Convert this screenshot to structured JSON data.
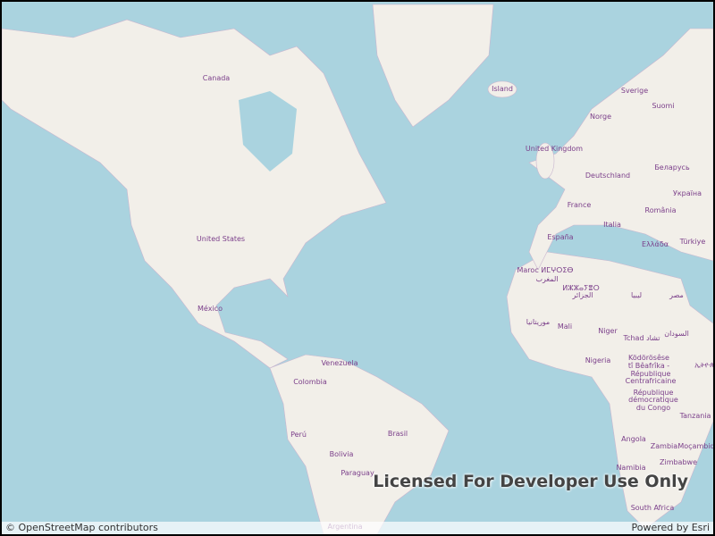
{
  "map": {
    "labels": [
      "Canada",
      "Island",
      "Sverige",
      "Suomi",
      "Norge",
      "United Kingdom",
      "Беларусь",
      "Deutschland",
      "Україна",
      "France",
      "România",
      "Italia",
      "España",
      "Ελλάδα",
      "Türkiye",
      "United States",
      "Maroc ⵍⵎⵖⵔⵉⴱ",
      "المغرب",
      "ⵍⵣⵣⴰⵢⴻⵔ",
      "الجزائر",
      "ليبيا",
      "مصر",
      "México",
      "موريتانيا",
      "Mali",
      "Niger",
      "Tchad تشاد",
      "السودان",
      "Venezuela",
      "Colombia",
      "Nigeria",
      "Ködörösêse",
      "tî Bêafrîka -",
      "République",
      "Centrafricaine",
      "République",
      "démocratique",
      "du Congo",
      "ኢትዮጵያ",
      "Perú",
      "Brasil",
      "Tanzania",
      "Angola",
      "Zambia",
      "Moçambique",
      "Bolivia",
      "Namibia",
      "Zimbabwe",
      "Paraguay",
      "South Africa",
      "Argentina"
    ],
    "watermark": "Licensed For Developer Use Only",
    "attribution": "© OpenStreetMap contributors",
    "powered_by": "Powered by Esri"
  }
}
